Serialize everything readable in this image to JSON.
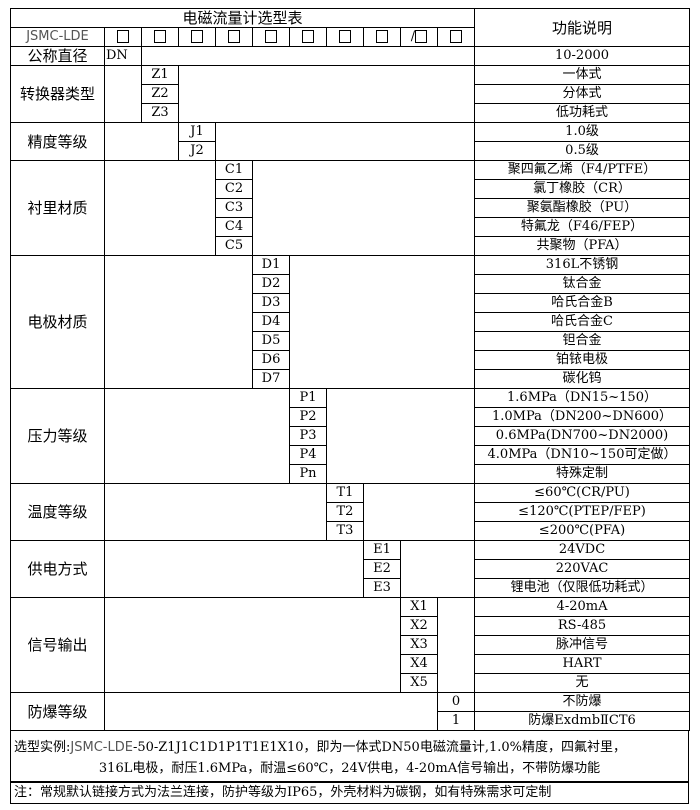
{
  "header": {
    "title": "电磁流量计选型表",
    "function_header": "功能说明",
    "model": "JSMC-LDE",
    "slots": [
      "□",
      "□",
      "□",
      "□",
      "□",
      "□",
      "□",
      "□",
      "/□",
      "□"
    ]
  },
  "groups": [
    {
      "label": "公称直径",
      "col": 1,
      "rows": [
        {
          "code": "DN",
          "desc": "10-2000"
        }
      ]
    },
    {
      "label": "转换器类型",
      "col": 2,
      "rows": [
        {
          "code": "Z1",
          "desc": "一体式"
        },
        {
          "code": "Z2",
          "desc": "分体式"
        },
        {
          "code": "Z3",
          "desc": "低功耗式"
        }
      ]
    },
    {
      "label": "精度等级",
      "col": 3,
      "rows": [
        {
          "code": "J1",
          "desc": "1.0级"
        },
        {
          "code": "J2",
          "desc": "0.5级"
        }
      ]
    },
    {
      "label": "衬里材质",
      "col": 4,
      "rows": [
        {
          "code": "C1",
          "desc": "聚四氟乙烯（F4/PTFE）"
        },
        {
          "code": "C2",
          "desc": "氯丁橡胶（CR）"
        },
        {
          "code": "C3",
          "desc": "聚氨酯橡胶（PU）"
        },
        {
          "code": "C4",
          "desc": "特氟龙（F46/FEP）"
        },
        {
          "code": "C5",
          "desc": "共聚物（PFA）"
        }
      ]
    },
    {
      "label": "电极材质",
      "col": 5,
      "rows": [
        {
          "code": "D1",
          "desc": "316L不锈钢"
        },
        {
          "code": "D2",
          "desc": "钛合金"
        },
        {
          "code": "D3",
          "desc": "哈氏合金B"
        },
        {
          "code": "D4",
          "desc": "哈氏合金C"
        },
        {
          "code": "D5",
          "desc": "钽合金"
        },
        {
          "code": "D6",
          "desc": "铂铱电极"
        },
        {
          "code": "D7",
          "desc": "碳化钨"
        }
      ]
    },
    {
      "label": "压力等级",
      "col": 6,
      "rows": [
        {
          "code": "P1",
          "desc": "1.6MPa（DN15~150）"
        },
        {
          "code": "P2",
          "desc": "1.0MPa（DN200~DN600）"
        },
        {
          "code": "P3",
          "desc": "0.6MPa(DN700~DN2000)"
        },
        {
          "code": "P4",
          "desc": "4.0MPa（DN10~150可定做）"
        },
        {
          "code": "Pn",
          "desc": "特殊定制"
        }
      ]
    },
    {
      "label": "温度等级",
      "col": 7,
      "rows": [
        {
          "code": "T1",
          "desc": "≤60℃(CR/PU)"
        },
        {
          "code": "T2",
          "desc": "≤120℃(PTEP/FEP)"
        },
        {
          "code": "T3",
          "desc": "≤200℃(PFA)"
        }
      ]
    },
    {
      "label": "供电方式",
      "col": 8,
      "rows": [
        {
          "code": "E1",
          "desc": "24VDC"
        },
        {
          "code": "E2",
          "desc": "220VAC"
        },
        {
          "code": "E3",
          "desc": "锂电池（仅限低功耗式）"
        }
      ]
    },
    {
      "label": "信号输出",
      "col": 9,
      "rows": [
        {
          "code": "X1",
          "desc": "4-20mA"
        },
        {
          "code": "X2",
          "desc": "RS-485"
        },
        {
          "code": "X3",
          "desc": "脉冲信号"
        },
        {
          "code": "X4",
          "desc": "HART"
        },
        {
          "code": "X5",
          "desc": "无"
        }
      ]
    },
    {
      "label": "防爆等级",
      "col": 10,
      "rows": [
        {
          "code": "0",
          "desc": "不防爆"
        },
        {
          "code": "1",
          "desc": "防爆ExdmbⅡCT6"
        }
      ]
    }
  ],
  "example": {
    "prefix": "选型实例:",
    "code": "JSMC-LDE",
    "rest": "-50-Z1J1C1D1P1T1E1X10，即为一体式DN50电磁流量计,1.0%精度，四氟衬里，",
    "line2": "316L电极，耐压1.6MPa，耐温≤60℃，24V供电，4-20mA信号输出，不带防爆功能"
  },
  "note": "注：常规默认链接方式为法兰连接，防护等级为IP65，外壳材料为碳钢，如有特殊需求可定制"
}
